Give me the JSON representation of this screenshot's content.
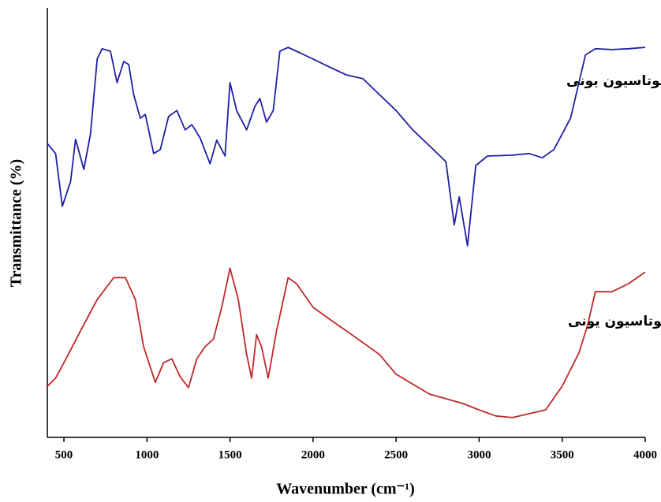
{
  "chart_data": {
    "type": "line",
    "xlabel": "Wavenumber (cm⁻¹)",
    "ylabel": "Transmittance (%)",
    "xlim": [
      400,
      4000
    ],
    "xticks": [
      500,
      1000,
      1500,
      2000,
      2500,
      3000,
      3500,
      4000
    ],
    "ylim": [
      0,
      100
    ],
    "annotations": [
      "ب) بعد فلوتاسیون یونی",
      "الف) قبل فلوتاسیون یونی"
    ],
    "series": [
      {
        "color": "#1f1fa8",
        "x": [
          400,
          450,
          490,
          540,
          570,
          620,
          660,
          700,
          730,
          780,
          820,
          860,
          890,
          920,
          960,
          990,
          1040,
          1080,
          1130,
          1180,
          1230,
          1270,
          1320,
          1380,
          1420,
          1450,
          1470,
          1500,
          1540,
          1600,
          1650,
          1680,
          1720,
          1760,
          1800,
          1850,
          1900,
          2000,
          2100,
          2200,
          2300,
          2400,
          2500,
          2600,
          2700,
          2800,
          2850,
          2880,
          2930,
          2980,
          3050,
          3200,
          3300,
          3380,
          3450,
          3550,
          3640,
          3700,
          3800,
          3900,
          4000
        ],
        "values": [
          68.4,
          66.1,
          53.8,
          59.6,
          69.4,
          62.4,
          70.6,
          88.1,
          90.5,
          89.9,
          82.6,
          87.5,
          86.8,
          79.8,
          74.3,
          75.2,
          66.1,
          67.0,
          74.7,
          76.1,
          71.6,
          72.8,
          69.7,
          63.7,
          69.2,
          67.0,
          65.5,
          82.6,
          76.1,
          71.6,
          77.1,
          78.9,
          73.4,
          76.1,
          89.9,
          90.8,
          89.9,
          88.1,
          86.2,
          84.4,
          83.5,
          79.8,
          76.1,
          71.6,
          67.9,
          64.2,
          49.5,
          56.0,
          44.6,
          63.3,
          65.5,
          65.7,
          66.1,
          65.1,
          67.0,
          74.3,
          89.0,
          90.5,
          90.3,
          90.5,
          90.8
        ]
      },
      {
        "color": "#c0282a",
        "x": [
          400,
          450,
          500,
          600,
          700,
          800,
          870,
          930,
          980,
          1050,
          1100,
          1150,
          1200,
          1250,
          1300,
          1350,
          1400,
          1450,
          1500,
          1550,
          1600,
          1630,
          1660,
          1690,
          1730,
          1780,
          1850,
          1900,
          2000,
          2100,
          2200,
          2400,
          2500,
          2700,
          2900,
          3000,
          3100,
          3200,
          3300,
          3400,
          3500,
          3600,
          3650,
          3700,
          3800,
          3900,
          4000
        ],
        "values": [
          11.9,
          13.8,
          17.4,
          24.8,
          32.1,
          37.2,
          37.2,
          32.1,
          21.1,
          12.8,
          17.4,
          18.3,
          14.1,
          11.6,
          18.3,
          21.1,
          22.9,
          30.3,
          39.4,
          32.1,
          19.3,
          13.8,
          23.9,
          21.1,
          13.8,
          24.8,
          37.2,
          35.8,
          30.3,
          27.5,
          24.8,
          19.3,
          14.7,
          10.1,
          7.9,
          6.4,
          5.0,
          4.6,
          5.5,
          6.4,
          11.9,
          19.6,
          25.7,
          33.9,
          33.9,
          35.8,
          38.5
        ]
      }
    ]
  }
}
